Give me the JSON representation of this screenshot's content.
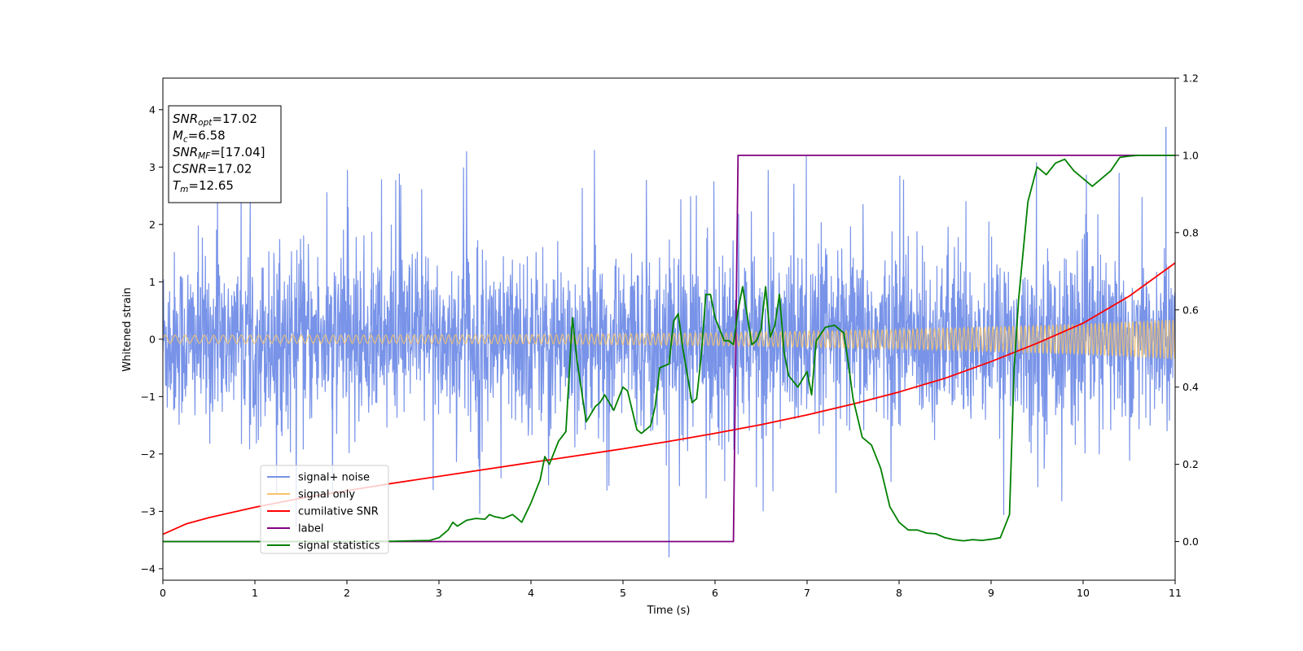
{
  "chart_data": {
    "type": "line",
    "xlabel": "Time (s)",
    "ylabel": "Whitened strain",
    "xlim": [
      0,
      11
    ],
    "ylim_left": [
      -4.2,
      4.55
    ],
    "ylim_right": [
      -0.1,
      1.2
    ],
    "x_ticks": [
      "0",
      "1",
      "2",
      "3",
      "4",
      "5",
      "6",
      "7",
      "8",
      "9",
      "10",
      "11"
    ],
    "y_ticks_left": [
      "−4",
      "−3",
      "−2",
      "−1",
      "0",
      "1",
      "2",
      "3",
      "4"
    ],
    "y_ticks_right": [
      "0.0",
      "0.2",
      "0.4",
      "0.6",
      "0.8",
      "1.0",
      "1.2"
    ],
    "legend_position": "lower-left",
    "info_box": {
      "lines": [
        {
          "main": "SNR",
          "sub": "opt",
          "rest": "=17.02"
        },
        {
          "main": "M",
          "sub": "c",
          "rest": "=6.58"
        },
        {
          "main": "SNR",
          "sub": "MF",
          "rest": "=[17.04]"
        },
        {
          "main": "CSNR",
          "sub": "",
          "rest": "=17.02"
        },
        {
          "main": "T",
          "sub": "m",
          "rest": "=12.65"
        }
      ]
    },
    "series": [
      {
        "name": "signal+ noise",
        "axis": "left",
        "color": "#7893E8",
        "description_values": {
          "noise_sigma": 0.75,
          "peak_max": 3.7,
          "peak_min": -3.8
        }
      },
      {
        "name": "signal only",
        "axis": "left",
        "color": "#F5C36B",
        "amplitude_vs_time": {
          "x": [
            0,
            2,
            4,
            6,
            8,
            10,
            11
          ],
          "y": [
            0.07,
            0.07,
            0.08,
            0.11,
            0.17,
            0.27,
            0.35
          ]
        }
      },
      {
        "name": "cumilative SNR",
        "axis": "left",
        "color": "#FF0000",
        "x": [
          0,
          0.25,
          0.5,
          1,
          1.5,
          2,
          2.5,
          3,
          3.5,
          4,
          4.5,
          5,
          5.5,
          6,
          6.5,
          7,
          7.5,
          8,
          8.5,
          9,
          9.5,
          10,
          10.5,
          11
        ],
        "y": [
          -3.4,
          -3.22,
          -3.11,
          -2.93,
          -2.77,
          -2.64,
          -2.51,
          -2.39,
          -2.27,
          -2.15,
          -2.03,
          -1.91,
          -1.78,
          -1.64,
          -1.49,
          -1.32,
          -1.13,
          -0.92,
          -0.68,
          -0.39,
          -0.07,
          0.28,
          0.75,
          1.33
        ]
      },
      {
        "name": "label",
        "axis": "right",
        "color": "#800080",
        "x": [
          0,
          6.2,
          6.25,
          11
        ],
        "y": [
          0,
          0,
          1,
          1
        ]
      },
      {
        "name": "signal statistics",
        "axis": "right",
        "color": "#008000",
        "x": [
          0,
          1,
          2,
          2.5,
          2.9,
          3.0,
          3.1,
          3.15,
          3.2,
          3.3,
          3.4,
          3.5,
          3.55,
          3.6,
          3.7,
          3.8,
          3.9,
          4.0,
          4.1,
          4.15,
          4.2,
          4.3,
          4.38,
          4.45,
          4.5,
          4.6,
          4.7,
          4.75,
          4.8,
          4.9,
          5.0,
          5.05,
          5.1,
          5.15,
          5.2,
          5.3,
          5.35,
          5.4,
          5.5,
          5.55,
          5.6,
          5.65,
          5.75,
          5.8,
          5.85,
          5.9,
          5.95,
          6.0,
          6.05,
          6.1,
          6.15,
          6.2,
          6.25,
          6.3,
          6.4,
          6.45,
          6.5,
          6.55,
          6.6,
          6.65,
          6.7,
          6.75,
          6.8,
          6.9,
          7.0,
          7.05,
          7.1,
          7.2,
          7.3,
          7.4,
          7.45,
          7.5,
          7.6,
          7.7,
          7.8,
          7.9,
          8.0,
          8.1,
          8.2,
          8.3,
          8.4,
          8.5,
          8.6,
          8.7,
          8.8,
          8.9,
          9.0,
          9.1,
          9.15,
          9.2,
          9.25,
          9.3,
          9.4,
          9.5,
          9.6,
          9.7,
          9.8,
          9.9,
          10.0,
          10.1,
          10.2,
          10.3,
          10.4,
          10.5,
          10.6,
          11.0
        ],
        "y": [
          0,
          0,
          0,
          0.001,
          0.003,
          0.01,
          0.03,
          0.05,
          0.04,
          0.055,
          0.06,
          0.058,
          0.07,
          0.065,
          0.06,
          0.07,
          0.05,
          0.1,
          0.16,
          0.22,
          0.2,
          0.26,
          0.285,
          0.58,
          0.47,
          0.31,
          0.35,
          0.36,
          0.38,
          0.34,
          0.4,
          0.39,
          0.34,
          0.29,
          0.28,
          0.3,
          0.35,
          0.45,
          0.46,
          0.57,
          0.59,
          0.5,
          0.36,
          0.37,
          0.48,
          0.64,
          0.64,
          0.58,
          0.55,
          0.52,
          0.52,
          0.51,
          0.6,
          0.66,
          0.51,
          0.52,
          0.55,
          0.66,
          0.53,
          0.56,
          0.64,
          0.49,
          0.43,
          0.4,
          0.44,
          0.38,
          0.52,
          0.555,
          0.56,
          0.54,
          0.46,
          0.37,
          0.27,
          0.25,
          0.19,
          0.09,
          0.05,
          0.03,
          0.03,
          0.022,
          0.02,
          0.01,
          0.005,
          0.002,
          0.005,
          0.003,
          0.006,
          0.01,
          0.04,
          0.07,
          0.45,
          0.63,
          0.88,
          0.97,
          0.95,
          0.98,
          0.99,
          0.96,
          0.94,
          0.92,
          0.94,
          0.96,
          0.995,
          0.998,
          1.0,
          1.0
        ]
      }
    ]
  }
}
